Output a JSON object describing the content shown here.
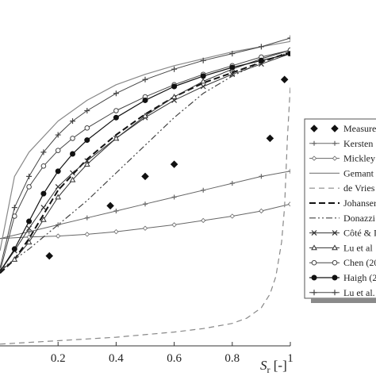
{
  "chart_data": {
    "type": "line",
    "title": "",
    "xlabel": "S_r [-]",
    "xlabel_main": "S",
    "xlabel_sub": "r",
    "xlabel_unit": " [-]",
    "xlim": [
      0,
      1
    ],
    "x_ticks": [
      "0.2",
      "0.4",
      "0.6",
      "0.8",
      "1"
    ],
    "grid": false,
    "legend_placement": "right",
    "legend": [
      "Measure",
      "Kersten",
      "Mickley",
      "Gemant",
      "de Vries",
      "Johanser",
      "Donazzi",
      "Côté & I",
      "Lu et al",
      "Chen (20",
      "Haigh (2",
      "Lu et al."
    ],
    "series": [
      {
        "name": "Measure",
        "x": [
          0.17,
          0.38,
          0.5,
          0.6,
          0.93,
          0.98
        ],
        "y": [
          0.52,
          0.81,
          0.98,
          1.05,
          1.2,
          1.54
        ]
      },
      {
        "name": "Kersten",
        "x": [
          0.0,
          0.1,
          0.2,
          0.3,
          0.4,
          0.5,
          0.6,
          0.7,
          0.8,
          0.9,
          1.0
        ],
        "y": [
          0.62,
          0.66,
          0.7,
          0.74,
          0.78,
          0.82,
          0.86,
          0.9,
          0.94,
          0.98,
          1.01
        ]
      },
      {
        "name": "Mickley",
        "x": [
          0.0,
          0.1,
          0.2,
          0.3,
          0.4,
          0.5,
          0.6,
          0.7,
          0.8,
          0.9,
          1.0
        ],
        "y": [
          0.62,
          0.63,
          0.635,
          0.645,
          0.66,
          0.68,
          0.7,
          0.725,
          0.75,
          0.78,
          0.82
        ]
      },
      {
        "name": "Gemant",
        "x": [
          0.0,
          0.05,
          0.1,
          0.2,
          0.3,
          0.4,
          0.5,
          0.6,
          0.7,
          0.8,
          0.9,
          1.0
        ],
        "y": [
          0.55,
          0.98,
          1.12,
          1.3,
          1.42,
          1.51,
          1.57,
          1.62,
          1.66,
          1.7,
          1.73,
          1.76
        ]
      },
      {
        "name": "de Vries",
        "x": [
          0.0,
          0.2,
          0.4,
          0.6,
          0.7,
          0.8,
          0.85,
          0.9,
          0.93,
          0.95,
          0.97,
          0.98,
          0.99,
          1.0
        ],
        "y": [
          0.01,
          0.03,
          0.05,
          0.08,
          0.1,
          0.13,
          0.16,
          0.22,
          0.3,
          0.4,
          0.6,
          0.8,
          1.2,
          1.5
        ]
      },
      {
        "name": "Johanser",
        "x": [
          0.0,
          0.05,
          0.1,
          0.15,
          0.2,
          0.3,
          0.4,
          0.5,
          0.6,
          0.7,
          0.8,
          0.9,
          1.0
        ],
        "y": [
          0.42,
          0.5,
          0.62,
          0.76,
          0.9,
          1.08,
          1.22,
          1.34,
          1.44,
          1.52,
          1.58,
          1.64,
          1.7
        ]
      },
      {
        "name": "Donazzi",
        "x": [
          0.0,
          0.1,
          0.2,
          0.3,
          0.4,
          0.5,
          0.6,
          0.7,
          0.8,
          0.9,
          1.0
        ],
        "y": [
          0.44,
          0.56,
          0.7,
          0.84,
          1.0,
          1.16,
          1.32,
          1.46,
          1.56,
          1.64,
          1.7
        ]
      },
      {
        "name": "Côté & I",
        "x": [
          0.0,
          0.05,
          0.1,
          0.15,
          0.2,
          0.25,
          0.3,
          0.4,
          0.5,
          0.6,
          0.7,
          0.8,
          0.9,
          1.0
        ],
        "y": [
          0.43,
          0.55,
          0.68,
          0.8,
          0.92,
          1.0,
          1.07,
          1.2,
          1.32,
          1.42,
          1.5,
          1.57,
          1.63,
          1.69
        ]
      },
      {
        "name": "Lu et al",
        "x": [
          0.0,
          0.05,
          0.1,
          0.15,
          0.2,
          0.25,
          0.3,
          0.4,
          0.5,
          0.6,
          0.7,
          0.8,
          0.9,
          1.0
        ],
        "y": [
          0.43,
          0.5,
          0.6,
          0.73,
          0.86,
          0.96,
          1.05,
          1.2,
          1.33,
          1.44,
          1.53,
          1.6,
          1.66,
          1.71
        ]
      },
      {
        "name": "Chen (20",
        "x": [
          0.0,
          0.05,
          0.1,
          0.15,
          0.2,
          0.25,
          0.3,
          0.4,
          0.5,
          0.6,
          0.7,
          0.8,
          0.9,
          1.0
        ],
        "y": [
          0.43,
          0.75,
          0.92,
          1.04,
          1.13,
          1.2,
          1.26,
          1.36,
          1.44,
          1.51,
          1.57,
          1.62,
          1.67,
          1.71
        ]
      },
      {
        "name": "Haigh (2",
        "x": [
          0.0,
          0.05,
          0.1,
          0.15,
          0.2,
          0.25,
          0.3,
          0.4,
          0.5,
          0.6,
          0.7,
          0.8,
          0.9,
          1.0
        ],
        "y": [
          0.43,
          0.56,
          0.72,
          0.88,
          1.01,
          1.11,
          1.19,
          1.32,
          1.42,
          1.5,
          1.56,
          1.61,
          1.65,
          1.69
        ]
      },
      {
        "name": "Lu et al.",
        "x": [
          0.0,
          0.05,
          0.1,
          0.15,
          0.2,
          0.25,
          0.3,
          0.4,
          0.5,
          0.6,
          0.7,
          0.8,
          0.9,
          1.0
        ],
        "y": [
          0.45,
          0.8,
          0.98,
          1.12,
          1.22,
          1.3,
          1.36,
          1.46,
          1.54,
          1.6,
          1.65,
          1.69,
          1.73,
          1.78
        ]
      }
    ]
  }
}
